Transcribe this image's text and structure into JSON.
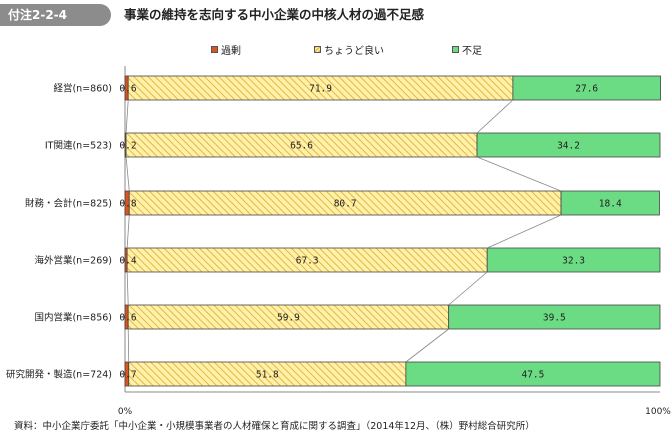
{
  "header": {
    "figure_label": "付注2-2-4",
    "title": "事業の維持を志向する中小企業の中核人材の過不足感"
  },
  "colors": {
    "excess": "#d9541e",
    "just_right": "#fff2a8",
    "just_right_hatch": "#e3b64a",
    "shortage": "#6cdc84",
    "bar_border": "#444444"
  },
  "chart_data": {
    "type": "bar",
    "orientation": "horizontal",
    "stacked": true,
    "percent": true,
    "categories": [
      "経営(n=860)",
      "IT関連(n=523)",
      "財務・会計(n=825)",
      "海外営業(n=269)",
      "国内営業(n=856)",
      "研究開発・製造(n=724)"
    ],
    "series": [
      {
        "name": "過剰",
        "values": [
          0.6,
          0.2,
          0.8,
          0.4,
          0.6,
          0.7
        ],
        "labels": [
          "0.6",
          "0.2",
          "0.8",
          "0.4",
          "0.6",
          "0.7"
        ]
      },
      {
        "name": "ちょうど良い",
        "values": [
          71.9,
          65.6,
          80.7,
          67.3,
          59.9,
          51.8
        ],
        "labels": [
          "71.9",
          "65.6",
          "80.7",
          "67.3",
          "59.9",
          "51.8"
        ]
      },
      {
        "name": "不足",
        "values": [
          27.6,
          34.2,
          18.4,
          32.3,
          39.5,
          47.5
        ],
        "labels": [
          "27.6",
          "34.2",
          "18.4",
          "32.3",
          "39.5",
          "47.5"
        ]
      }
    ],
    "x_ticks": [
      "0%",
      "100%"
    ],
    "xlim": [
      0,
      100
    ],
    "legend_position": "top",
    "series_connector_lines": true
  },
  "source": "資料：中小企業庁委託「中小企業・小規模事業者の人材確保と育成に関する調査」（2014年12月、（株）野村総合研究所）"
}
